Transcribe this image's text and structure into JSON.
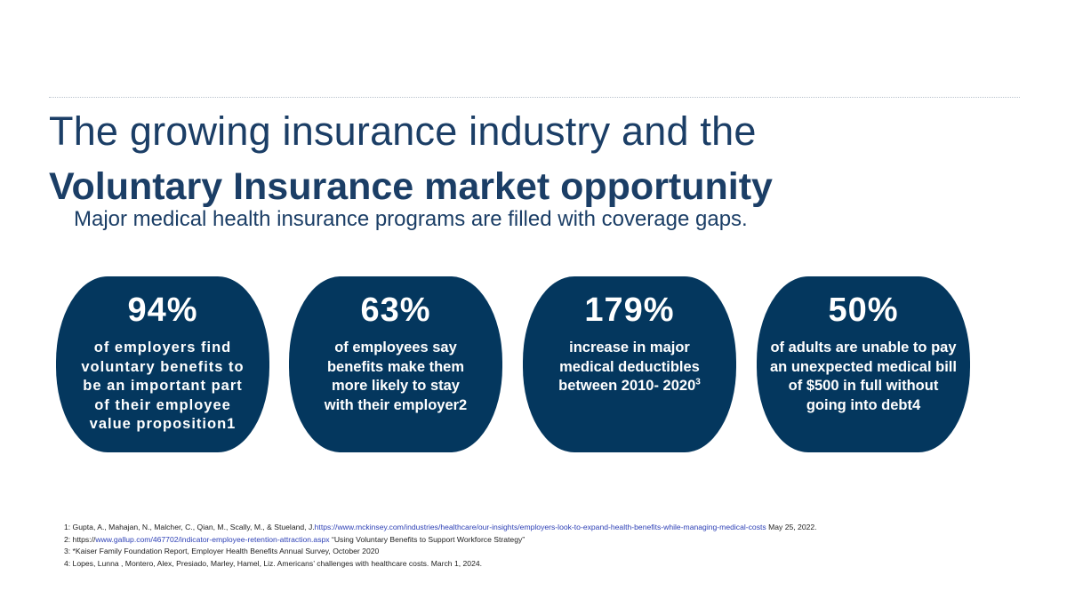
{
  "title": {
    "line1": "The growing insurance industry and the",
    "line2": "Voluntary Insurance market opportunity"
  },
  "subtitle": "Major medical health insurance programs are filled with coverage gaps.",
  "stats": [
    {
      "value": "94%",
      "lines": [
        "of employers find",
        "voluntary benefits to",
        "be an important part",
        "of their employee",
        "value proposition1"
      ]
    },
    {
      "value": "63%",
      "lines": [
        "of employees say",
        "benefits make them",
        "more likely to stay",
        "with their employer2"
      ]
    },
    {
      "value": "179%",
      "lines": [
        "increase in major",
        "medical deductibles",
        "between 2010- 2020"
      ],
      "superscript": "3"
    },
    {
      "value": "50%",
      "lines": [
        "of adults are unable to pay",
        "an unexpected medical bill",
        "of $500 in full without",
        "going into debt4"
      ]
    }
  ],
  "footnotes": [
    {
      "prefix": "1: Gupta, A., Mahajan, N., Malcher, C., Qian, M., Scally, M., & Stueland, J.",
      "link": "https://www.mckinsey.com/industries/healthcare/our-insights/employers-look-to-expand-health-benefits-while-managing-medical-costs",
      "suffix": " May 25, 2022."
    },
    {
      "prefix": "2: https://",
      "link": "www.gallup.com/467702/indicator-employee-retention-attraction.aspx",
      "suffix": " “Using Voluntary Benefits to Support Workforce Strategy”"
    },
    {
      "prefix": "3: *Kaiser Family Foundation Report, Employer Health Benefits Annual Survey, October 2020",
      "link": "",
      "suffix": ""
    },
    {
      "prefix": "4: Lopes, Lunna , Montero, Alex, Presiado, Marley, Hamel, Liz. Americans’ challenges with healthcare costs. March 1, 2024.",
      "link": "",
      "suffix": ""
    }
  ],
  "colors": {
    "brand_navy": "#04375e",
    "title_blue": "#1b3e66",
    "link_blue": "#2c3fb5"
  }
}
